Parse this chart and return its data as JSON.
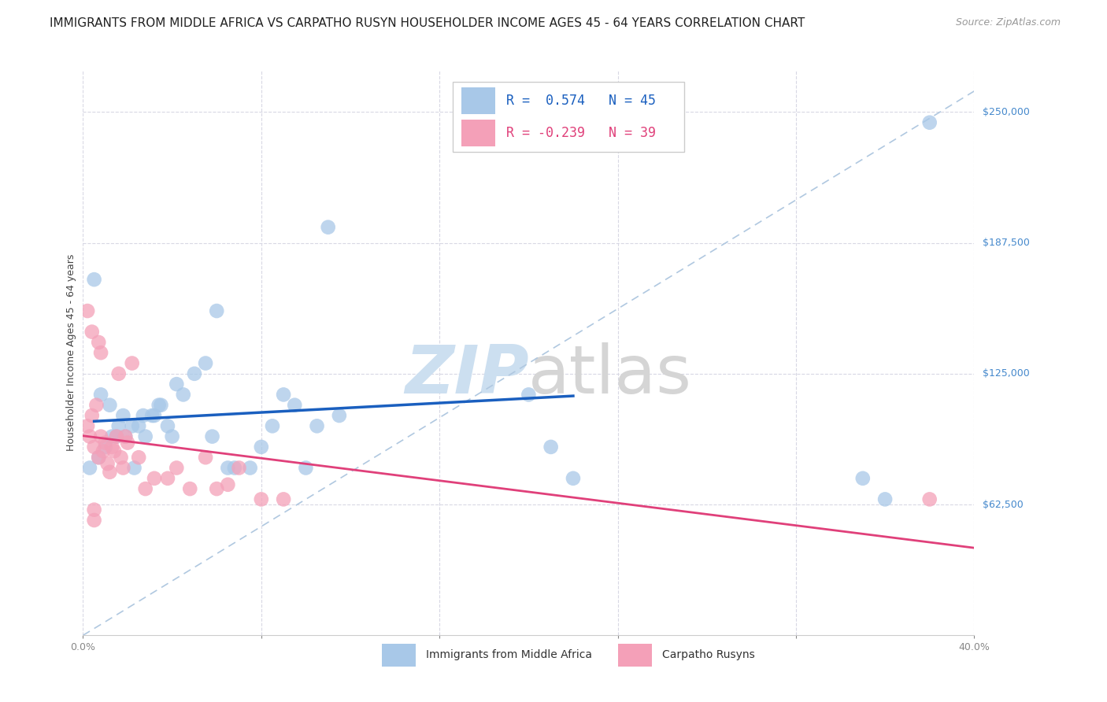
{
  "title": "IMMIGRANTS FROM MIDDLE AFRICA VS CARPATHO RUSYN HOUSEHOLDER INCOME AGES 45 - 64 YEARS CORRELATION CHART",
  "source": "Source: ZipAtlas.com",
  "ylabel": "Householder Income Ages 45 - 64 years",
  "xlim": [
    0.0,
    0.4
  ],
  "ylim": [
    0,
    270000
  ],
  "yticks": [
    62500,
    125000,
    187500,
    250000
  ],
  "ytick_labels": [
    "$62,500",
    "$125,000",
    "$187,500",
    "$250,000"
  ],
  "xticks": [
    0.0,
    0.08,
    0.16,
    0.24,
    0.32,
    0.4
  ],
  "R_blue": 0.574,
  "N_blue": 45,
  "R_pink": -0.239,
  "N_pink": 39,
  "blue_color": "#a8c8e8",
  "pink_color": "#f4a0b8",
  "blue_line_color": "#1a5fbf",
  "pink_line_color": "#e0407a",
  "dashed_line_color": "#b0c8e0",
  "blue_scatter_x": [
    0.003,
    0.005,
    0.007,
    0.008,
    0.01,
    0.012,
    0.013,
    0.015,
    0.016,
    0.018,
    0.019,
    0.022,
    0.023,
    0.025,
    0.027,
    0.028,
    0.031,
    0.032,
    0.034,
    0.035,
    0.038,
    0.04,
    0.042,
    0.045,
    0.05,
    0.055,
    0.058,
    0.06,
    0.065,
    0.068,
    0.075,
    0.08,
    0.085,
    0.09,
    0.095,
    0.1,
    0.105,
    0.11,
    0.115,
    0.2,
    0.21,
    0.22,
    0.35,
    0.36,
    0.38
  ],
  "blue_scatter_y": [
    80000,
    170000,
    85000,
    115000,
    90000,
    110000,
    95000,
    95000,
    100000,
    105000,
    95000,
    100000,
    80000,
    100000,
    105000,
    95000,
    105000,
    105000,
    110000,
    110000,
    100000,
    95000,
    120000,
    115000,
    125000,
    130000,
    95000,
    155000,
    80000,
    80000,
    80000,
    90000,
    100000,
    115000,
    110000,
    80000,
    100000,
    195000,
    105000,
    115000,
    90000,
    75000,
    75000,
    65000,
    245000
  ],
  "pink_scatter_x": [
    0.002,
    0.002,
    0.003,
    0.004,
    0.004,
    0.005,
    0.005,
    0.006,
    0.007,
    0.007,
    0.008,
    0.008,
    0.009,
    0.01,
    0.011,
    0.012,
    0.013,
    0.014,
    0.015,
    0.016,
    0.017,
    0.018,
    0.019,
    0.02,
    0.022,
    0.025,
    0.028,
    0.032,
    0.038,
    0.042,
    0.048,
    0.055,
    0.06,
    0.065,
    0.07,
    0.08,
    0.09,
    0.38,
    0.005
  ],
  "pink_scatter_y": [
    100000,
    155000,
    95000,
    105000,
    145000,
    90000,
    60000,
    110000,
    85000,
    140000,
    95000,
    135000,
    88000,
    92000,
    82000,
    78000,
    90000,
    88000,
    95000,
    125000,
    85000,
    80000,
    95000,
    92000,
    130000,
    85000,
    70000,
    75000,
    75000,
    80000,
    70000,
    85000,
    70000,
    72000,
    80000,
    65000,
    65000,
    65000,
    55000
  ],
  "background_color": "#ffffff",
  "grid_color": "#d8d8e4",
  "title_fontsize": 11,
  "axis_label_fontsize": 9,
  "tick_fontsize": 9,
  "legend_fontsize": 11
}
